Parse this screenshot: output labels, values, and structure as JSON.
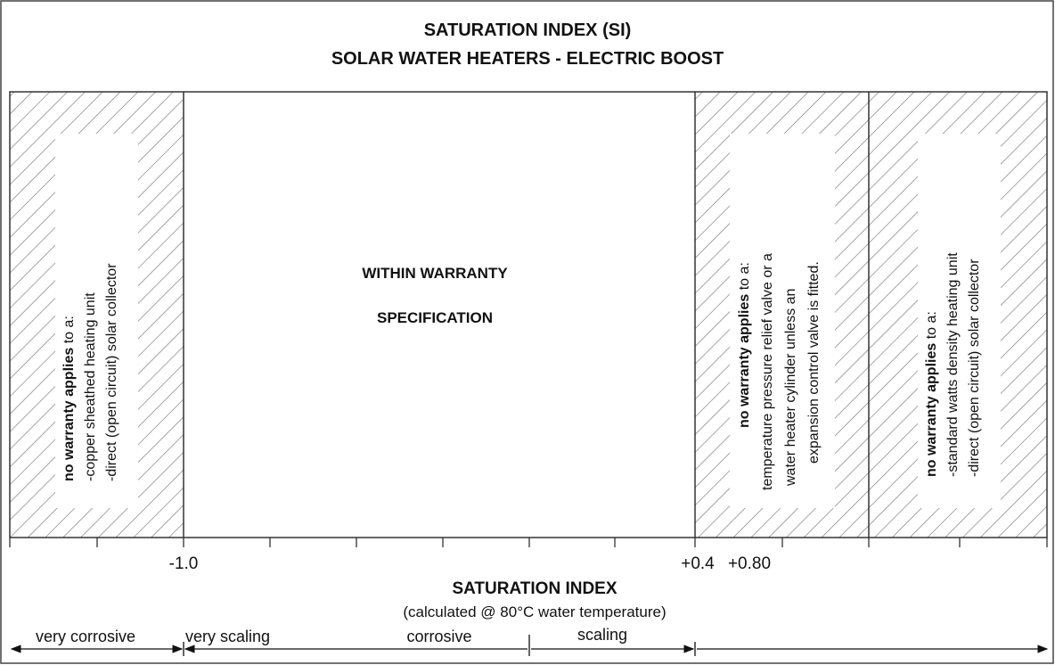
{
  "title": {
    "line1": "SATURATION INDEX (SI)",
    "line2": "SOLAR WATER HEATERS - ELECTRIC BOOST"
  },
  "zones": {
    "left": {
      "bold": "no warranty applies",
      "rest": " to a:",
      "lines": [
        "-copper sheathed heating unit",
        "-direct (open circuit) solar collector"
      ]
    },
    "center": {
      "line1": "WITHIN WARRANTY",
      "line2": "SPECIFICATION"
    },
    "right1": {
      "bold": "no warranty applies",
      "rest": " to a:",
      "lines": [
        "temperature pressure relief valve or a",
        "water heater cylinder unless an",
        "expansion control valve is fitted."
      ]
    },
    "right2": {
      "bold": "no warranty applies",
      "rest": " to a:",
      "lines": [
        "-standard watts density heating unit",
        "-direct (open circuit) solar collector"
      ]
    }
  },
  "axis": {
    "tick_labels": {
      "minus_one": "-1.0",
      "plus_pt4": "+0.4",
      "plus_pt8": "+0.80"
    },
    "title": "SATURATION INDEX",
    "subtitle": "(calculated @ 80°C water temperature)"
  },
  "ranges": {
    "very_corrosive": "very corrosive",
    "very_scaling": "very scaling",
    "corrosive": "corrosive",
    "scaling": "scaling"
  }
}
